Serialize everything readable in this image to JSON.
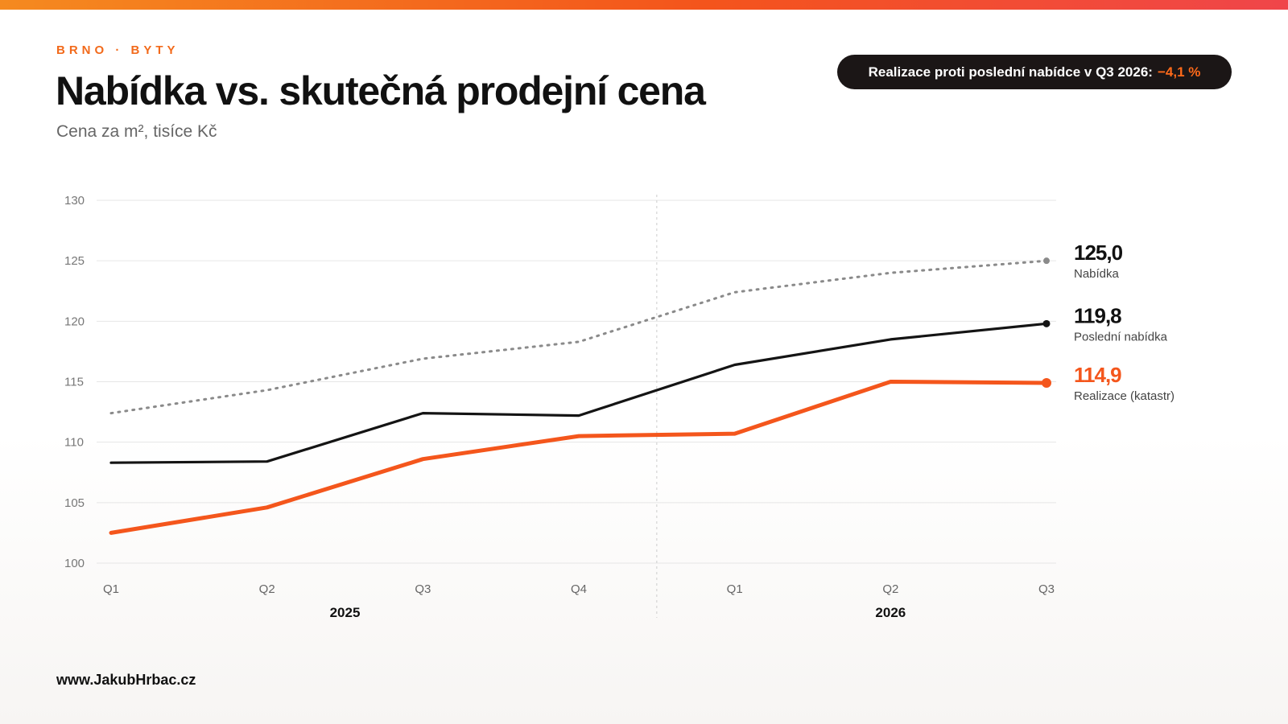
{
  "header": {
    "eyebrow": "BRNO · BYTY",
    "title": "Nabídka vs. skutečná prodejní cena",
    "subtitle": "Cena za m², tisíce Kč",
    "pill_text": "Realizace proti poslední nabídce v Q3 2026:",
    "pill_value": "−4,1 %"
  },
  "footer": {
    "url": "www.JakubHrbac.cz"
  },
  "colors": {
    "accent": "#f26a1b",
    "realizace": "#f4561c",
    "posledni": "#141414",
    "nabidka": "#8a8a8a",
    "pill_bg": "#1b1616"
  },
  "chart_data": {
    "type": "line",
    "categories": [
      "Q1",
      "Q2",
      "Q3",
      "Q4",
      "Q1",
      "Q2",
      "Q3"
    ],
    "year_groups": [
      {
        "label": "2025",
        "span": [
          0,
          3
        ]
      },
      {
        "label": "2026",
        "span": [
          4,
          6
        ]
      }
    ],
    "ylim": [
      100,
      130
    ],
    "yticks": [
      100,
      105,
      110,
      115,
      120,
      125,
      130
    ],
    "grid": true,
    "series": [
      {
        "key": "nabidka",
        "name": "Nabídka",
        "style": "dotted",
        "color": "#8a8a8a",
        "values": [
          112.4,
          114.3,
          116.9,
          118.3,
          122.4,
          124.0,
          125.0
        ],
        "end_label": "125,0"
      },
      {
        "key": "posledni",
        "name": "Poslední nabídka",
        "style": "solid",
        "color": "#141414",
        "values": [
          108.3,
          108.4,
          112.4,
          112.2,
          116.4,
          118.5,
          119.8
        ],
        "end_label": "119,8"
      },
      {
        "key": "realizace",
        "name": "Realizace (katastr)",
        "style": "solid-thick",
        "color": "#f4561c",
        "values": [
          102.5,
          104.6,
          108.6,
          110.5,
          110.7,
          115.0,
          114.9
        ],
        "end_label": "114,9"
      }
    ]
  }
}
